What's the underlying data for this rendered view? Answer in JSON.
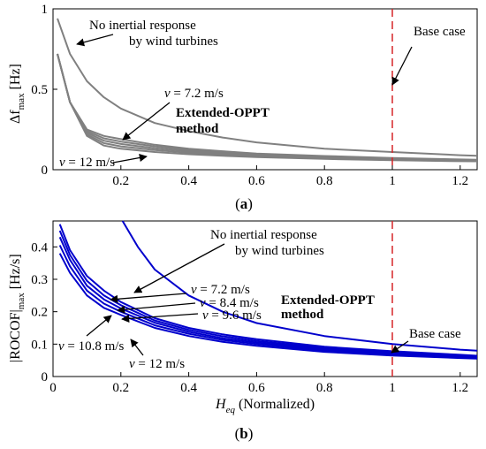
{
  "chart_data": [
    {
      "panel": "(a)",
      "panel_letter": "a",
      "type": "line",
      "xlabel": "",
      "ylabel_main": "Δf",
      "ylabel_sub": "max",
      "ylabel_unit": "[Hz]",
      "xlim": [
        0,
        1.25
      ],
      "ylim": [
        0,
        1.0
      ],
      "xticks": [
        0.2,
        0.4,
        0.6,
        0.8,
        1.0,
        1.2
      ],
      "xtick_labels": [
        "0.2",
        "0.4",
        "0.6",
        "0.8",
        "1",
        "1.2"
      ],
      "yticks": [
        0,
        0.5,
        1.0
      ],
      "ytick_labels": [
        "0",
        "0.5",
        "1"
      ],
      "grid": false,
      "line_color": "#808080",
      "series": [
        {
          "label": "No inertial response by wind turbines",
          "x": [
            0.013,
            0.05,
            0.1,
            0.15,
            0.2,
            0.3,
            0.4,
            0.5,
            0.6,
            0.8,
            1.0,
            1.2,
            1.25
          ],
          "y": [
            0.94,
            0.72,
            0.55,
            0.45,
            0.38,
            0.29,
            0.24,
            0.2,
            0.17,
            0.13,
            0.11,
            0.09,
            0.087
          ]
        },
        {
          "label": "v = 7.2 m/s",
          "x": [
            0.013,
            0.05,
            0.1,
            0.15,
            0.2,
            0.3,
            0.4,
            0.5,
            0.6,
            0.8,
            1.0,
            1.2,
            1.25
          ],
          "y": [
            0.72,
            0.42,
            0.25,
            0.21,
            0.19,
            0.155,
            0.13,
            0.115,
            0.1,
            0.085,
            0.073,
            0.064,
            0.062
          ]
        },
        {
          "label": "",
          "x": [
            0.013,
            0.05,
            0.1,
            0.15,
            0.2,
            0.3,
            0.4,
            0.5,
            0.6,
            0.8,
            1.0,
            1.2,
            1.25
          ],
          "y": [
            0.72,
            0.42,
            0.24,
            0.195,
            0.175,
            0.145,
            0.122,
            0.107,
            0.095,
            0.08,
            0.069,
            0.061,
            0.059
          ]
        },
        {
          "label": "",
          "x": [
            0.013,
            0.05,
            0.1,
            0.15,
            0.2,
            0.3,
            0.4,
            0.5,
            0.6,
            0.8,
            1.0,
            1.2,
            1.25
          ],
          "y": [
            0.72,
            0.42,
            0.23,
            0.18,
            0.16,
            0.133,
            0.114,
            0.1,
            0.089,
            0.075,
            0.066,
            0.058,
            0.057
          ]
        },
        {
          "label": "",
          "x": [
            0.013,
            0.05,
            0.1,
            0.15,
            0.2,
            0.3,
            0.4,
            0.5,
            0.6,
            0.8,
            1.0,
            1.2,
            1.25
          ],
          "y": [
            0.72,
            0.42,
            0.22,
            0.165,
            0.145,
            0.122,
            0.105,
            0.093,
            0.083,
            0.071,
            0.062,
            0.055,
            0.054
          ]
        },
        {
          "label": "v = 12 m/s",
          "x": [
            0.013,
            0.05,
            0.1,
            0.15,
            0.2,
            0.3,
            0.4,
            0.5,
            0.6,
            0.8,
            1.0,
            1.2,
            1.25
          ],
          "y": [
            0.72,
            0.42,
            0.21,
            0.15,
            0.13,
            0.11,
            0.096,
            0.086,
            0.078,
            0.067,
            0.059,
            0.053,
            0.052
          ]
        }
      ],
      "marker_line": {
        "x": 1.0,
        "color": "#d62728",
        "style": "dashed"
      },
      "annotations": [
        {
          "id": "no_inertial_1",
          "text": "No inertial response"
        },
        {
          "id": "no_inertial_2",
          "text": "by wind turbines"
        },
        {
          "id": "v72_prefix",
          "text": "v",
          "suffix": " = 7.2 m/s"
        },
        {
          "id": "oppt_1",
          "text": "Extended-OPPT"
        },
        {
          "id": "oppt_2",
          "text": "method"
        },
        {
          "id": "v12_prefix",
          "text": "v",
          "suffix": " = 12 m/s"
        },
        {
          "id": "base_case",
          "text": "Base case"
        }
      ]
    },
    {
      "panel": "(b)",
      "panel_letter": "b",
      "type": "line",
      "xlabel_main": "H",
      "xlabel_sub": "eq",
      "xlabel_rest": "(Normalized)",
      "ylabel_main": "|ROCOF|",
      "ylabel_sub": "max",
      "ylabel_unit": "[Hz/s]",
      "xlim": [
        0,
        1.25
      ],
      "ylim": [
        0,
        0.48
      ],
      "xticks": [
        0,
        0.2,
        0.4,
        0.6,
        0.8,
        1.0,
        1.2
      ],
      "xtick_labels": [
        "0",
        "0.2",
        "0.4",
        "0.6",
        "0.8",
        "1",
        "1.2"
      ],
      "yticks": [
        0,
        0.1,
        0.2,
        0.3,
        0.4
      ],
      "ytick_labels": [
        "0",
        "0.1",
        "0.2",
        "0.3",
        "0.4"
      ],
      "grid": false,
      "line_color": "#0000cc",
      "series": [
        {
          "label": "No inertial response by wind turbines",
          "x": [
            0.205,
            0.25,
            0.3,
            0.4,
            0.5,
            0.6,
            0.8,
            1.0,
            1.2,
            1.25
          ],
          "y": [
            0.48,
            0.4,
            0.33,
            0.25,
            0.2,
            0.165,
            0.125,
            0.1,
            0.083,
            0.08
          ]
        },
        {
          "label": "v = 7.2 m/s",
          "x": [
            0.02,
            0.05,
            0.1,
            0.15,
            0.2,
            0.3,
            0.4,
            0.5,
            0.6,
            0.8,
            1.0,
            1.2,
            1.25
          ],
          "y": [
            0.47,
            0.39,
            0.31,
            0.265,
            0.23,
            0.18,
            0.15,
            0.13,
            0.115,
            0.092,
            0.078,
            0.067,
            0.064
          ]
        },
        {
          "label": "v = 8.4 m/s",
          "x": [
            0.02,
            0.05,
            0.1,
            0.15,
            0.2,
            0.3,
            0.4,
            0.5,
            0.6,
            0.8,
            1.0,
            1.2,
            1.25
          ],
          "y": [
            0.45,
            0.375,
            0.295,
            0.25,
            0.22,
            0.173,
            0.144,
            0.124,
            0.11,
            0.088,
            0.075,
            0.065,
            0.062
          ]
        },
        {
          "label": "v = 9.6 m/s",
          "x": [
            0.02,
            0.05,
            0.1,
            0.15,
            0.2,
            0.3,
            0.4,
            0.5,
            0.6,
            0.8,
            1.0,
            1.2,
            1.25
          ],
          "y": [
            0.43,
            0.36,
            0.28,
            0.238,
            0.21,
            0.166,
            0.138,
            0.118,
            0.105,
            0.084,
            0.071,
            0.062,
            0.06
          ]
        },
        {
          "label": "v = 10.8 m/s",
          "x": [
            0.02,
            0.05,
            0.1,
            0.15,
            0.2,
            0.3,
            0.4,
            0.5,
            0.6,
            0.8,
            1.0,
            1.2,
            1.25
          ],
          "y": [
            0.405,
            0.34,
            0.265,
            0.225,
            0.2,
            0.158,
            0.132,
            0.113,
            0.1,
            0.08,
            0.068,
            0.06,
            0.058
          ]
        },
        {
          "label": "v = 12 m/s",
          "x": [
            0.02,
            0.05,
            0.1,
            0.15,
            0.2,
            0.3,
            0.4,
            0.5,
            0.6,
            0.8,
            1.0,
            1.2,
            1.25
          ],
          "y": [
            0.38,
            0.32,
            0.25,
            0.212,
            0.19,
            0.15,
            0.125,
            0.107,
            0.095,
            0.076,
            0.065,
            0.057,
            0.055
          ]
        }
      ],
      "marker_line": {
        "x": 1.0,
        "color": "#d62728",
        "style": "dashed"
      },
      "annotations": [
        {
          "id": "no_inertial_1",
          "text": "No inertial response"
        },
        {
          "id": "no_inertial_2",
          "text": "by wind turbines"
        },
        {
          "id": "v72_prefix",
          "text": "v",
          "suffix": " = 7.2 m/s"
        },
        {
          "id": "v84_prefix",
          "text": "v",
          "suffix": " = 8.4 m/s"
        },
        {
          "id": "v96_prefix",
          "text": "v",
          "suffix": " = 9.6 m/s"
        },
        {
          "id": "v108_prefix",
          "text": "v",
          "suffix": " = 10.8 m/s"
        },
        {
          "id": "v12_prefix",
          "text": "v",
          "suffix": " = 12 m/s"
        },
        {
          "id": "oppt_1",
          "text": "Extended-OPPT"
        },
        {
          "id": "oppt_2",
          "text": "method"
        },
        {
          "id": "base_case",
          "text": "Base case"
        }
      ]
    }
  ]
}
